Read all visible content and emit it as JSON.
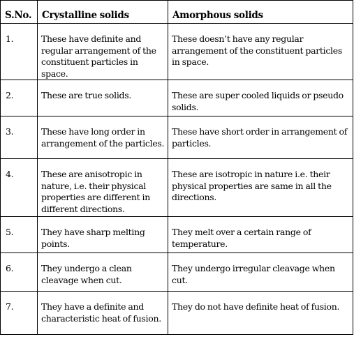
{
  "table": {
    "headers": [
      "S.No.",
      "Crystalline solids",
      "Amorphous solids"
    ],
    "rows": [
      {
        "sno": "1.",
        "crystalline": "These have definite and regular arrangement of the constituent particles in space.",
        "amorphous": "These doesn’t have any regular arrangement of the constituent particles in space."
      },
      {
        "sno": "2.",
        "crystalline": "These are true solids.",
        "amorphous": "These are super cooled liquids or pseudo solids."
      },
      {
        "sno": "3.",
        "crystalline": "These have long order in arrangement of the particles.",
        "amorphous": "These have short order in arrangement of particles."
      },
      {
        "sno": "4.",
        "crystalline": "These are anisotropic in nature, i.e. their physical properties are different in different directions.",
        "amorphous": "These are isotropic in nature i.e. their physical properties are same in all the directions."
      },
      {
        "sno": "5.",
        "crystalline": "They have sharp melting points.",
        "amorphous": "They melt over a certain range of temperature."
      },
      {
        "sno": "6.",
        "crystalline": "They undergo a clean cleavage when cut.",
        "amorphous": "They undergo irregular cleavage when cut."
      },
      {
        "sno": "7.",
        "crystalline": "They have a definite and characteristic heat of fusion.",
        "amorphous": "They do not have definite heat of fusion."
      }
    ]
  }
}
